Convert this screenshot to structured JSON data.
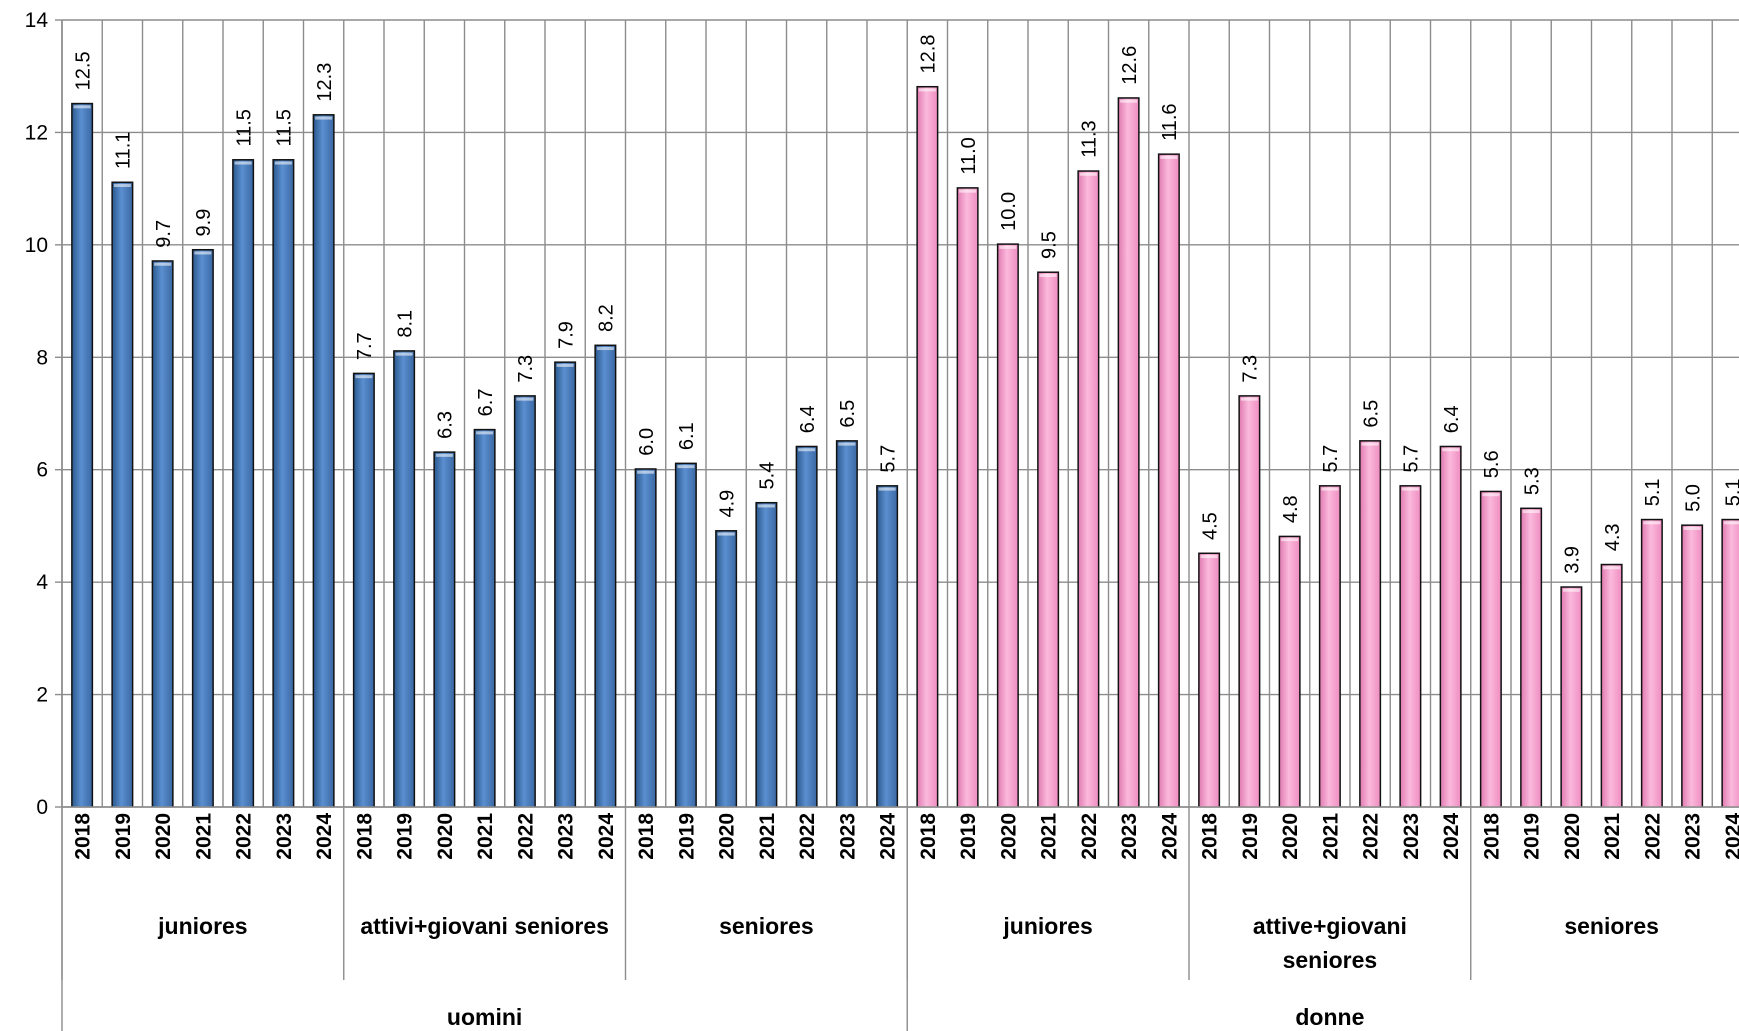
{
  "chart_data": {
    "type": "bar",
    "title": "",
    "xlabel": "",
    "ylabel": "",
    "ylim": [
      0,
      14
    ],
    "yticks": [
      "0",
      "2",
      "4",
      "6",
      "8",
      "10",
      "12",
      "14"
    ],
    "grid": true,
    "legend": "none",
    "colors": {
      "uomini": "#4f81bd",
      "donne": "#f59ccb"
    },
    "groups": [
      {
        "label": "uomini",
        "color": "#4f81bd",
        "subgroups": [
          {
            "label": "juniores",
            "years": [
              "2018",
              "2019",
              "2020",
              "2021",
              "2022",
              "2023",
              "2024"
            ],
            "values": [
              12.5,
              11.1,
              9.7,
              9.9,
              11.5,
              11.5,
              12.3
            ],
            "labels": [
              "12.5",
              "11.1",
              "9.7",
              "9.9",
              "11.5",
              "11.5",
              "12.3"
            ]
          },
          {
            "label": "attivi+giovani seniores",
            "years": [
              "2018",
              "2019",
              "2020",
              "2021",
              "2022",
              "2023",
              "2024"
            ],
            "values": [
              7.7,
              8.1,
              6.3,
              6.7,
              7.3,
              7.9,
              8.2
            ],
            "labels": [
              "7.7",
              "8.1",
              "6.3",
              "6.7",
              "7.3",
              "7.9",
              "8.2"
            ]
          },
          {
            "label": "seniores",
            "years": [
              "2018",
              "2019",
              "2020",
              "2021",
              "2022",
              "2023",
              "2024"
            ],
            "values": [
              6.0,
              6.1,
              4.9,
              5.4,
              6.4,
              6.5,
              5.7
            ],
            "labels": [
              "6.0",
              "6.1",
              "4.9",
              "5.4",
              "6.4",
              "6.5",
              "5.7"
            ]
          }
        ]
      },
      {
        "label": "donne",
        "color": "#f59ccb",
        "subgroups": [
          {
            "label": "juniores",
            "years": [
              "2018",
              "2019",
              "2020",
              "2021",
              "2022",
              "2023",
              "2024"
            ],
            "values": [
              12.8,
              11.0,
              10.0,
              9.5,
              11.3,
              12.6,
              11.6
            ],
            "labels": [
              "12.8",
              "11.0",
              "10.0",
              "9.5",
              "11.3",
              "12.6",
              "11.6"
            ]
          },
          {
            "label": "attive+giovani seniores",
            "label_lines": [
              "attive+giovani",
              "seniores"
            ],
            "years": [
              "2018",
              "2019",
              "2020",
              "2021",
              "2022",
              "2023",
              "2024"
            ],
            "values": [
              4.5,
              7.3,
              4.8,
              5.7,
              6.5,
              5.7,
              6.4
            ],
            "labels": [
              "4.5",
              "7.3",
              "4.8",
              "5.7",
              "6.5",
              "5.7",
              "6.4"
            ]
          },
          {
            "label": "seniores",
            "years": [
              "2018",
              "2019",
              "2020",
              "2021",
              "2022",
              "2023",
              "2024"
            ],
            "values": [
              5.6,
              5.3,
              3.9,
              4.3,
              5.1,
              5.0,
              5.1
            ],
            "labels": [
              "5.6",
              "5.3",
              "3.9",
              "4.3",
              "5.1",
              "5.0",
              "5.1"
            ]
          }
        ]
      }
    ]
  }
}
